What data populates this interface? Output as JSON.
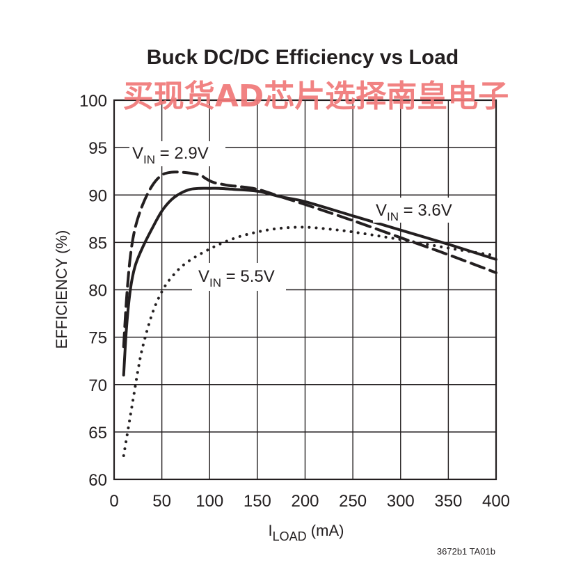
{
  "chart_data": {
    "type": "line",
    "title": "Buck DC/DC Efficiency vs Load",
    "xlabel": {
      "main": "I",
      "sub": "LOAD",
      "unit": " (mA)"
    },
    "ylabel": "EFFICIENCY (%)",
    "xlim": [
      0,
      400
    ],
    "ylim": [
      60,
      100
    ],
    "xticks": [
      0,
      50,
      100,
      150,
      200,
      250,
      300,
      350,
      400
    ],
    "yticks": [
      60,
      65,
      70,
      75,
      80,
      85,
      90,
      95,
      100
    ],
    "grid": true,
    "series": [
      {
        "name": {
          "main": "V",
          "sub": "IN",
          "rest": " = 2.9V"
        },
        "style": "dashed",
        "x": [
          10,
          13,
          17,
          22,
          30,
          40,
          50,
          60,
          70,
          80,
          90,
          95,
          100,
          105,
          110,
          120,
          130,
          150,
          175,
          200,
          250,
          300,
          350,
          400
        ],
        "y": [
          74,
          79,
          83.5,
          86.5,
          89,
          91,
          92.1,
          92.4,
          92.4,
          92.3,
          92.1,
          91.8,
          91.5,
          91.3,
          91.2,
          91,
          90.9,
          90.6,
          89.8,
          89,
          87.3,
          85.5,
          83.7,
          81.8
        ]
      },
      {
        "name": {
          "main": "V",
          "sub": "IN",
          "rest": " = 3.6V"
        },
        "style": "solid",
        "x": [
          10,
          13,
          17,
          22,
          30,
          40,
          50,
          60,
          70,
          80,
          90,
          100,
          110,
          125,
          150,
          175,
          200,
          250,
          300,
          350,
          400
        ],
        "y": [
          71,
          76,
          80,
          82.5,
          84.5,
          86.5,
          88.3,
          89.5,
          90.2,
          90.6,
          90.7,
          90.7,
          90.7,
          90.6,
          90.4,
          89.8,
          89.3,
          87.8,
          86.3,
          84.8,
          83.2
        ]
      },
      {
        "name": {
          "main": "V",
          "sub": "IN",
          "rest": " = 5.5V"
        },
        "style": "dotted",
        "x": [
          10,
          15,
          20,
          25,
          30,
          40,
          50,
          60,
          75,
          100,
          125,
          150,
          175,
          200,
          225,
          250,
          300,
          350,
          400
        ],
        "y": [
          62.5,
          65.5,
          68.5,
          71.5,
          74,
          77.5,
          79.8,
          81.3,
          82.8,
          84.3,
          85.4,
          86.1,
          86.5,
          86.6,
          86.4,
          86.1,
          85.3,
          84.4,
          83.6
        ]
      }
    ]
  },
  "watermark": "买现货AD芯片选择南皇电子",
  "figure_id": "3672b1 TA01b"
}
